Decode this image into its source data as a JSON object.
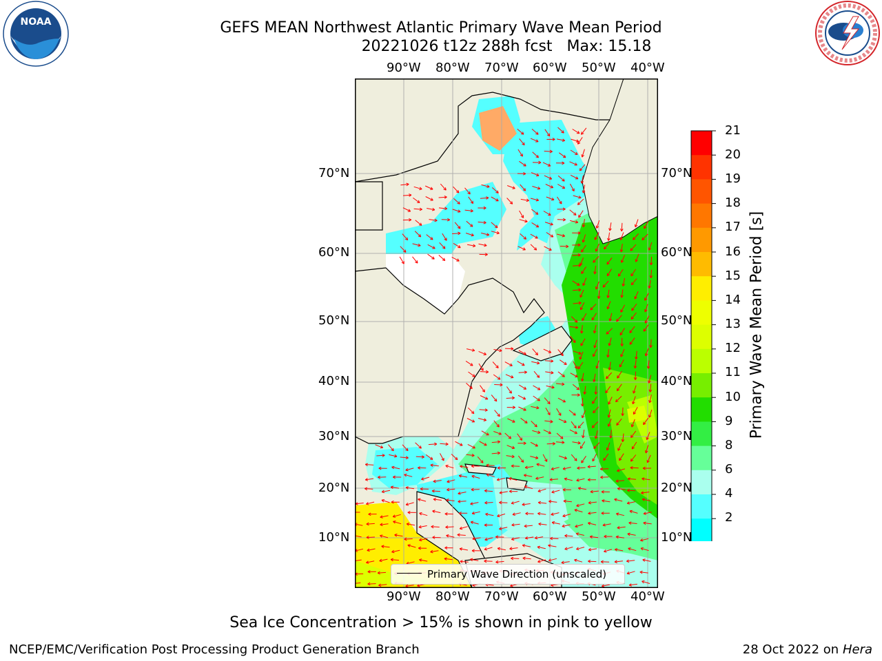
{
  "title": {
    "line1": "GEFS MEAN Northwest Atlantic Primary Wave Mean Period",
    "line2_run": "20221026 t12z 288h fcst",
    "line2_max": "Max: 15.18"
  },
  "logos": {
    "noaa_text": "NOAA",
    "noaa_ring": "NATIONAL OCEANIC AND ATMOSPHERIC ADMINISTRATION · U.S. DEPARTMENT OF COMMERCE",
    "nws_ring": "NATIONAL WEATHER SERVICE"
  },
  "axes": {
    "lon_labels_top": [
      "90°W",
      "80°W",
      "70°W",
      "60°W",
      "50°W",
      "40°W"
    ],
    "lon_labels_bottom": [
      "90°W",
      "80°W",
      "70°W",
      "60°W",
      "50°W",
      "40°W"
    ],
    "lat_labels_left": [
      "70°N",
      "60°N",
      "50°N",
      "40°N",
      "30°N",
      "20°N",
      "10°N"
    ],
    "lat_labels_right": [
      "70°N",
      "60°N",
      "50°N",
      "40°N",
      "30°N",
      "20°N",
      "10°N"
    ]
  },
  "legend": {
    "label": "Primary Wave Direction (unscaled)"
  },
  "colorbar": {
    "label": "Primary Wave Mean Period [s]",
    "ticks": [
      "21",
      "20",
      "19",
      "18",
      "17",
      "16",
      "15",
      "14",
      "13",
      "12",
      "11",
      "10",
      "9",
      "8",
      "6",
      "4",
      "2"
    ],
    "colors": [
      "#ff0000",
      "#ff3300",
      "#ff5500",
      "#ff7700",
      "#ff9900",
      "#ffbb00",
      "#ffee00",
      "#eeff00",
      "#ddff00",
      "#bbff00",
      "#77ee00",
      "#22dd00",
      "#33ee44",
      "#66ff99",
      "#aaffee",
      "#55ffff",
      "#00ffff",
      "#00bbff"
    ],
    "extend_color": "#0000ff"
  },
  "map_colors": {
    "land": "#efeedd",
    "ice_white": "#ffffff",
    "ice_pink": "#ff33cc",
    "ice_orange": "#ffaa66",
    "arrow": "#ff0000"
  },
  "note": "Sea Ice Concentration > 15% is shown in pink to yellow",
  "footer": {
    "left": "NCEP/EMC/Verification Post Processing Product Generation Branch",
    "right_date": "28 Oct 2022 on",
    "right_host": "Hera"
  }
}
